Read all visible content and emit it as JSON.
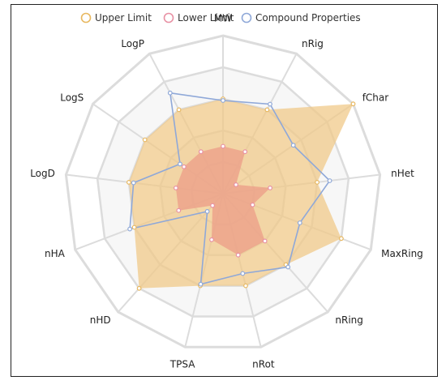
{
  "chart_data": {
    "type": "radar",
    "axes": [
      "MW",
      "nRig",
      "fChar",
      "nHet",
      "MaxRing",
      "nRing",
      "nRot",
      "TPSA",
      "nHD",
      "nHA",
      "LogD",
      "LogS",
      "LogP"
    ],
    "rings": 5,
    "rmax": 1.0,
    "series": [
      {
        "name": "Upper Limit",
        "color": "#e8b860",
        "fill": "#f0c98a",
        "values": [
          0.6,
          0.6,
          1.0,
          0.6,
          0.8,
          0.6,
          0.6,
          0.6,
          0.8,
          0.6,
          0.6,
          0.6,
          0.6
        ]
      },
      {
        "name": "Lower Limit",
        "color": "#e891a4",
        "fill": "#eca089",
        "values": [
          0.3,
          0.3,
          0.1,
          0.3,
          0.2,
          0.4,
          0.4,
          0.3,
          0.1,
          0.3,
          0.3,
          0.3,
          0.3
        ]
      },
      {
        "name": "Compound Properties",
        "color": "#8fa8d8",
        "fill": "none",
        "values": [
          0.59,
          0.64,
          0.54,
          0.68,
          0.52,
          0.62,
          0.52,
          0.59,
          0.15,
          0.63,
          0.57,
          0.33,
          0.72
        ]
      }
    ],
    "legend_position": "top-center"
  }
}
